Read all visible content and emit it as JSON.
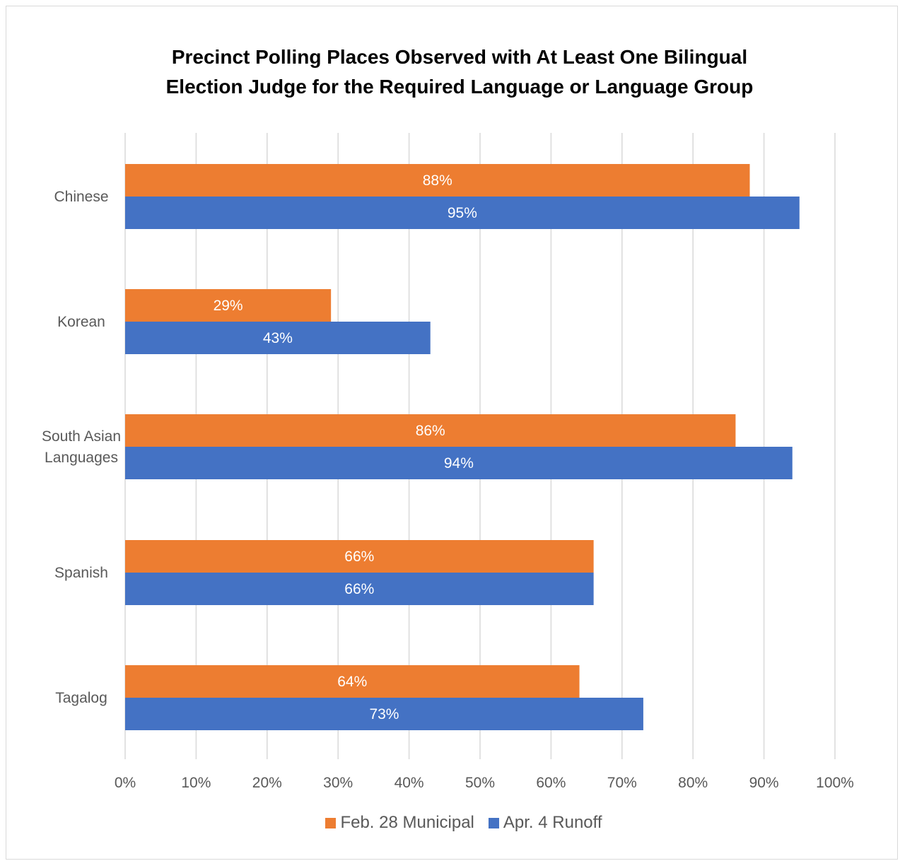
{
  "chart_data": {
    "type": "bar",
    "orientation": "horizontal",
    "title_lines": [
      "Precinct Polling Places Observed with At Least One Bilingual",
      "Election Judge for the Required Language or Language Group"
    ],
    "categories": [
      [
        "Chinese"
      ],
      [
        "Korean"
      ],
      [
        "South Asian",
        "Languages"
      ],
      [
        "Spanish"
      ],
      [
        "Tagalog"
      ]
    ],
    "series": [
      {
        "name": "Feb. 28 Municipal",
        "color": "#ED7D31",
        "values": [
          88,
          29,
          86,
          66,
          64
        ],
        "labels": [
          "88%",
          "29%",
          "86%",
          "66%",
          "64%"
        ]
      },
      {
        "name": "Apr. 4 Runoff",
        "color": "#4472C4",
        "values": [
          95,
          43,
          94,
          66,
          73
        ],
        "labels": [
          "95%",
          "43%",
          "94%",
          "66%",
          "73%"
        ]
      }
    ],
    "xlim": [
      0,
      100
    ],
    "xticks": [
      0,
      10,
      20,
      30,
      40,
      50,
      60,
      70,
      80,
      90,
      100
    ],
    "xtick_labels": [
      "0%",
      "10%",
      "20%",
      "30%",
      "40%",
      "50%",
      "60%",
      "70%",
      "80%",
      "90%",
      "100%"
    ],
    "grid": true,
    "legend_position": "bottom"
  }
}
